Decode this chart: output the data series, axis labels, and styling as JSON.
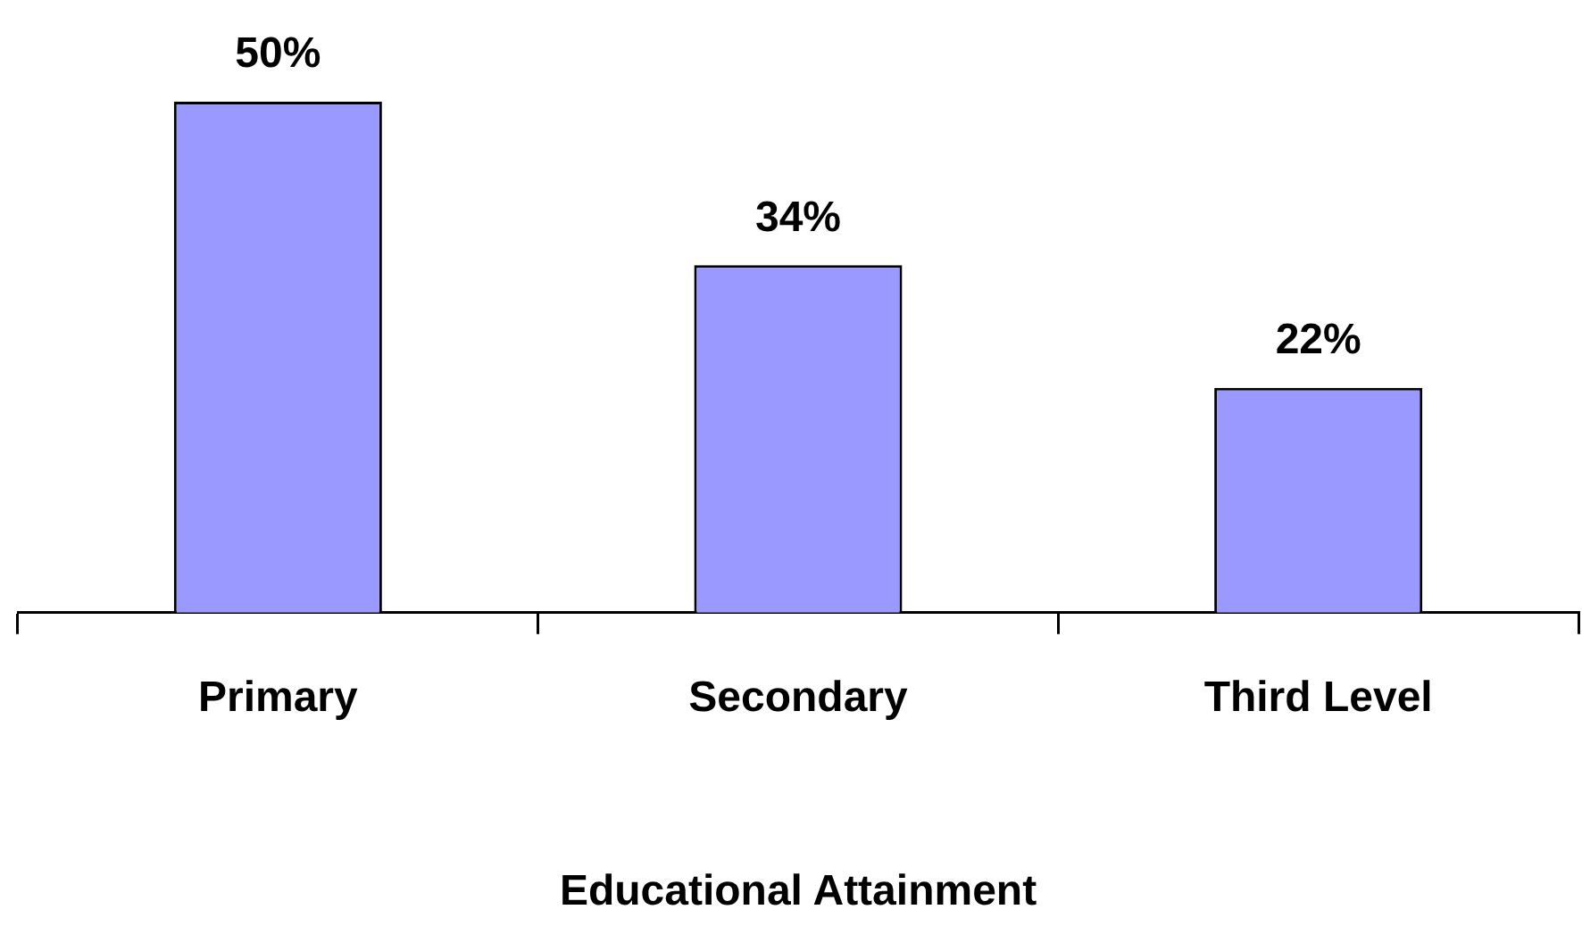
{
  "chart_data": {
    "type": "bar",
    "xlabel": "Educational Attainment",
    "categories": [
      "Primary",
      "Secondary",
      "Third Level"
    ],
    "values": [
      50,
      34,
      22
    ],
    "color": "#9999ff",
    "grid": false,
    "legend": false,
    "value_labels": [
      "50%",
      "34%",
      "22%"
    ]
  }
}
